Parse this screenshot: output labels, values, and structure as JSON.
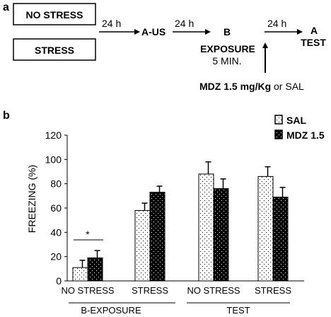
{
  "panel_a": {
    "label": "a",
    "box1": "NO STRESS",
    "box2": "STRESS",
    "arrow1_label": "24 h",
    "step2": "A-US",
    "arrow2_label": "24 h",
    "step3_line1": "B",
    "step3_line2": "EXPOSURE",
    "step3_line3": "5  MIN.",
    "arrow3_label": "24 h",
    "step4_line1": "A",
    "step4_line2": "TEST",
    "drug_bold": "MDZ 1.5 mg/Kg",
    "drug_rest": " or SAL"
  },
  "panel_b_label": "b",
  "chart_data": {
    "type": "bar",
    "ylabel": "FREEZING (%)",
    "ylim": [
      0,
      120
    ],
    "yticks": [
      "0",
      "20",
      "40",
      "60",
      "80",
      "100",
      "120"
    ],
    "categories": [
      "NO STRESS",
      "STRESS",
      "NO STRESS",
      "STRESS"
    ],
    "groups": [
      "B-EXPOSURE",
      "TEST"
    ],
    "series": [
      {
        "name": "SAL",
        "values": [
          11,
          58,
          88,
          86
        ],
        "errors": [
          6,
          6,
          10,
          8
        ],
        "pattern": "dotted-white",
        "color": "#ffffff"
      },
      {
        "name": "MDZ 1.5",
        "values": [
          19,
          73,
          76,
          69
        ],
        "errors": [
          6,
          5,
          8,
          8
        ],
        "pattern": "dotted-black",
        "color": "#000000"
      }
    ],
    "annotations": [
      "*"
    ],
    "legend_position": "top-right",
    "grid": false
  }
}
